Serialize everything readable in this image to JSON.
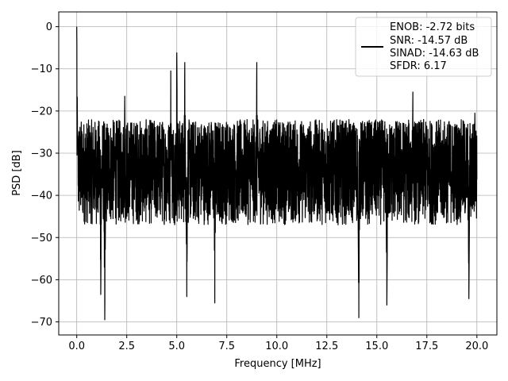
{
  "chart_data": {
    "type": "line",
    "xlabel": "Frequency [MHz]",
    "ylabel": "PSD [dB]",
    "xlim": [
      -0.9,
      21.0
    ],
    "ylim": [
      -73.1,
      3.5
    ],
    "xticks": [
      0.0,
      2.5,
      5.0,
      7.5,
      10.0,
      12.5,
      15.0,
      17.5,
      20.0
    ],
    "xtick_labels": [
      "0.0",
      "2.5",
      "5.0",
      "7.5",
      "10.0",
      "12.5",
      "15.0",
      "17.5",
      "20.0"
    ],
    "yticks": [
      0,
      -10,
      -20,
      -30,
      -40,
      -50,
      -60,
      -70
    ],
    "ytick_labels": [
      "0",
      "−10",
      "−20",
      "−30",
      "−40",
      "−50",
      "−60",
      "−70"
    ],
    "grid": true,
    "legend": {
      "placement": "top-right",
      "line_color": "#000000",
      "lines": [
        "ENOB: -2.72 bits",
        "SNR: -14.57 dB",
        "SINAD: -14.63 dB",
        "SFDR: 6.17"
      ]
    },
    "series": [
      {
        "color": "#000000",
        "x_range": [
          0.0,
          20.0
        ],
        "noise_floor_db": [
          -47,
          -22
        ],
        "peaks": [
          {
            "x": 0.0,
            "y": 0.0
          },
          {
            "x": 5.0,
            "y": -6.2
          },
          {
            "x": 4.7,
            "y": -10.5
          },
          {
            "x": 5.4,
            "y": -8.5
          },
          {
            "x": 9.0,
            "y": -8.5
          },
          {
            "x": 2.4,
            "y": -16.5
          },
          {
            "x": 16.8,
            "y": -15.5
          },
          {
            "x": 19.9,
            "y": -20.5
          }
        ],
        "troughs": [
          {
            "x": 1.4,
            "y": -69.5
          },
          {
            "x": 1.2,
            "y": -63.5
          },
          {
            "x": 5.5,
            "y": -64.0
          },
          {
            "x": 6.9,
            "y": -65.5
          },
          {
            "x": 14.1,
            "y": -69.0
          },
          {
            "x": 15.5,
            "y": -66.0
          },
          {
            "x": 19.6,
            "y": -64.5
          }
        ]
      }
    ]
  }
}
